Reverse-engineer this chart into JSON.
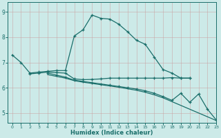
{
  "bg_color": "#cceae8",
  "grid_color": "#b0d4d2",
  "line_color": "#1a6e6a",
  "xlabel": "Humidex (Indice chaleur)",
  "xlim": [
    -0.5,
    23
  ],
  "ylim": [
    4.6,
    9.4
  ],
  "yticks": [
    5,
    6,
    7,
    8,
    9
  ],
  "xticks": [
    0,
    1,
    2,
    3,
    4,
    5,
    6,
    7,
    8,
    9,
    10,
    11,
    12,
    13,
    14,
    15,
    16,
    17,
    18,
    19,
    20,
    21,
    22,
    23
  ],
  "curve1_x": [
    0,
    1,
    2,
    3,
    4,
    5,
    6,
    7,
    8,
    9,
    10,
    11,
    12,
    13,
    14,
    15,
    16,
    17,
    18,
    19,
    20
  ],
  "curve1_y": [
    7.3,
    7.0,
    6.58,
    6.62,
    6.65,
    6.68,
    6.68,
    8.05,
    8.3,
    8.88,
    8.75,
    8.72,
    8.52,
    8.22,
    7.88,
    7.72,
    7.22,
    6.72,
    6.58,
    6.38,
    6.38
  ],
  "curve2_x": [
    2,
    3,
    4,
    5,
    6,
    7,
    8,
    9,
    10,
    11,
    12,
    13,
    14,
    15,
    16,
    17,
    18,
    19,
    20
  ],
  "curve2_y": [
    6.55,
    6.58,
    6.62,
    6.6,
    6.58,
    6.35,
    6.32,
    6.33,
    6.35,
    6.38,
    6.38,
    6.38,
    6.38,
    6.38,
    6.38,
    6.38,
    6.4,
    6.38,
    6.38
  ],
  "curve3_x": [
    4,
    5,
    6,
    7,
    8,
    9,
    10,
    11,
    12,
    13,
    14,
    15,
    16,
    17,
    18,
    19,
    20,
    21,
    22,
    23
  ],
  "curve3_y": [
    6.58,
    6.5,
    6.42,
    6.3,
    6.25,
    6.2,
    6.15,
    6.1,
    6.05,
    6.0,
    5.95,
    5.88,
    5.78,
    5.65,
    5.5,
    5.78,
    5.42,
    5.75,
    5.15,
    4.72
  ],
  "curve4_x": [
    4,
    5,
    6,
    7,
    8,
    9,
    10,
    11,
    12,
    13,
    14,
    15,
    16,
    17,
    18,
    19,
    20,
    21,
    22,
    23
  ],
  "curve4_y": [
    6.52,
    6.45,
    6.38,
    6.28,
    6.22,
    6.17,
    6.12,
    6.07,
    6.02,
    5.96,
    5.9,
    5.82,
    5.72,
    5.6,
    5.45,
    5.3,
    5.15,
    5.0,
    4.85,
    4.7
  ]
}
